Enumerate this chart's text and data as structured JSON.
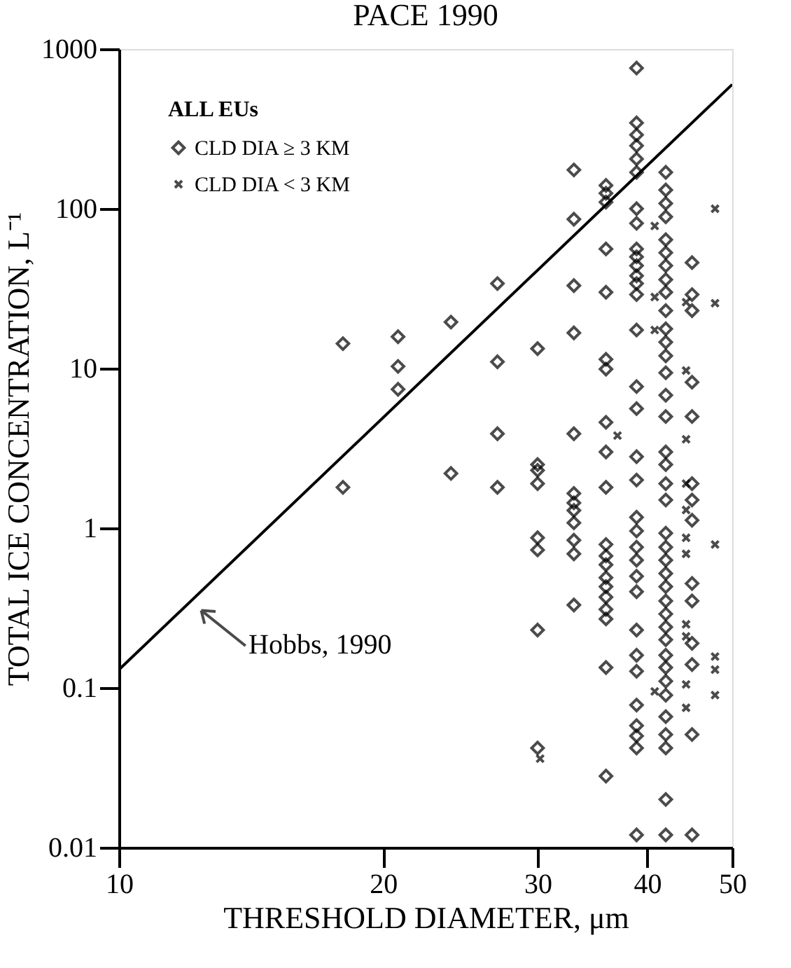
{
  "chart_data": {
    "type": "scatter",
    "title": "PACE 1990",
    "xlabel": "THRESHOLD DIAMETER, μm",
    "ylabel": "TOTAL ICE CONCENTRATION, L⁻¹",
    "legend_title": "ALL EUs",
    "legend": "top left",
    "log": "xy",
    "grid": false,
    "xlim": [
      10,
      50
    ],
    "xticks": [
      10,
      20,
      30,
      40,
      50
    ],
    "ylim": [
      0.01,
      1000
    ],
    "yticks": [
      0.01,
      0.1,
      1,
      10,
      100,
      1000
    ],
    "annotations": [
      {
        "text": "Hobbs, 1990",
        "x": 12.4,
        "y": 0.4
      }
    ],
    "series": [
      {
        "name": "CLD DIA ≥ 3 KM",
        "marker": "diamond",
        "color": "#000000",
        "x": [
          18,
          18,
          20.8,
          20.8,
          20.8,
          23.9,
          23.9,
          27,
          27,
          27,
          27,
          30,
          30,
          30,
          30,
          30,
          30,
          30,
          30,
          33,
          33,
          33,
          33,
          33,
          33,
          33,
          33,
          33,
          33,
          33,
          33,
          35.9,
          35.9,
          35.9,
          35.9,
          35.9,
          35.9,
          35.9,
          35.9,
          35.9,
          35.9,
          35.9,
          35.9,
          35.9,
          35.9,
          35.9,
          35.9,
          35.9,
          35.9,
          35.9,
          35.9,
          38.9,
          38.9,
          38.9,
          38.9,
          38.9,
          38.9,
          38.9,
          38.9,
          38.9,
          38.9,
          38.9,
          38.9,
          38.9,
          38.9,
          38.9,
          38.9,
          38.9,
          38.9,
          38.9,
          38.9,
          38.9,
          38.9,
          38.9,
          38.9,
          38.9,
          38.9,
          38.9,
          38.9,
          38.9,
          38.9,
          38.9,
          38.9,
          38.9,
          42,
          42,
          42,
          42,
          42,
          42,
          42,
          42,
          42,
          42,
          42,
          42,
          42,
          42,
          42,
          42,
          42,
          42,
          42,
          42,
          42,
          42,
          42,
          42,
          42,
          42,
          42,
          42,
          42,
          42,
          42,
          42,
          42,
          42,
          42,
          42,
          42,
          42,
          45,
          45,
          45,
          45,
          45,
          45,
          45,
          45,
          45,
          45,
          45,
          45,
          45,
          45
        ],
        "values": [
          14.3,
          1.8,
          15.8,
          10.3,
          7.4,
          19.5,
          2.2,
          34,
          11,
          3.9,
          1.8,
          13.3,
          2.5,
          2.3,
          1.9,
          0.87,
          0.73,
          0.23,
          0.042,
          175,
          86,
          33,
          16.7,
          3.9,
          1.65,
          1.44,
          1.29,
          1.08,
          0.84,
          0.69,
          0.33,
          140,
          125,
          110,
          56,
          30,
          11.4,
          9.9,
          4.6,
          3.0,
          1.8,
          0.79,
          0.67,
          0.59,
          0.49,
          0.43,
          0.37,
          0.31,
          0.27,
          0.134,
          0.028,
          760,
          345,
          290,
          248,
          205,
          169,
          100,
          81,
          56,
          50,
          44,
          38,
          34,
          29,
          17.4,
          7.7,
          5.6,
          2.8,
          2.0,
          1.17,
          0.96,
          0.76,
          0.63,
          0.5,
          0.4,
          0.23,
          0.16,
          0.127,
          0.078,
          0.058,
          0.05,
          0.042,
          0.012,
          169,
          131,
          108,
          89,
          64,
          53,
          44,
          36,
          30,
          23,
          17.7,
          14.6,
          12,
          9.4,
          6.8,
          5,
          3.0,
          2.5,
          1.9,
          1.5,
          0.93,
          0.76,
          0.63,
          0.52,
          0.43,
          0.35,
          0.29,
          0.24,
          0.2,
          0.16,
          0.134,
          0.11,
          0.09,
          0.066,
          0.051,
          0.042,
          0.02,
          0.012,
          46,
          29,
          23,
          8.2,
          5.0,
          1.9,
          1.5,
          1.12,
          0.45,
          0.35,
          0.19,
          0.14,
          0.051,
          0.012
        ]
      },
      {
        "name": "CLD DIA < 3 KM",
        "marker": "cross",
        "color": "#000000",
        "x": [
          40.8,
          40.8,
          40.8,
          40.8,
          37,
          44.3,
          44.3,
          44.3,
          44.3,
          44.3,
          44.3,
          44.3,
          44.3,
          44.3,
          44.3,
          44.3,
          47.8,
          47.8,
          47.8,
          47.8,
          47.8,
          47.8,
          30.2
        ],
        "values": [
          78,
          28,
          17.4,
          0.095,
          3.8,
          26,
          9.7,
          3.6,
          1.9,
          1.3,
          0.87,
          0.69,
          0.25,
          0.21,
          0.105,
          0.075,
          100,
          25.6,
          0.79,
          0.157,
          0.13,
          0.09,
          0.036
        ]
      },
      {
        "type": "line",
        "line_style": "solid",
        "color": "#000000",
        "x": [
          10,
          50
        ],
        "values": [
          0.13,
          600
        ]
      }
    ]
  }
}
